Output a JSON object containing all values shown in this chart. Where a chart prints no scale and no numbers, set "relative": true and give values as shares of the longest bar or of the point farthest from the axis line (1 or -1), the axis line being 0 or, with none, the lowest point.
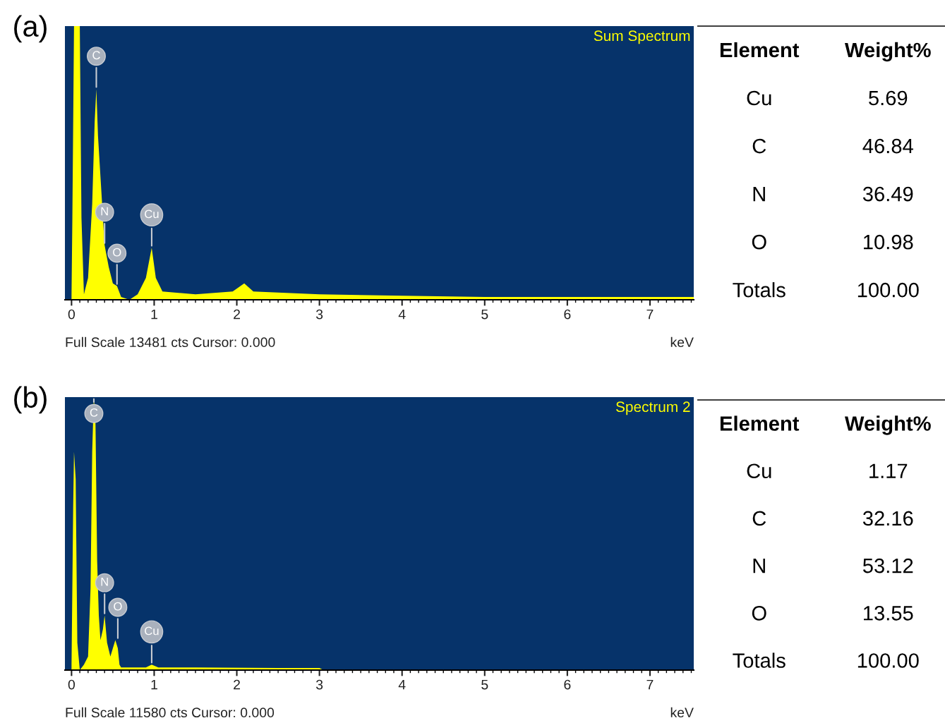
{
  "chart_data": [
    {
      "type": "area",
      "title": "Sum Spectrum",
      "xlabel": "keV",
      "relative": true,
      "xlim": [
        -0.08,
        7.53
      ],
      "xticks": [
        0,
        1,
        2,
        3,
        4,
        5,
        6,
        7
      ],
      "x": [
        0,
        0.01,
        0.03,
        0.1,
        0.12,
        0.15,
        0.2,
        0.25,
        0.28,
        0.3,
        0.32,
        0.4,
        0.45,
        0.5,
        0.55,
        0.6,
        0.7,
        0.8,
        0.9,
        0.97,
        1.02,
        1.1,
        1.5,
        1.95,
        2.09,
        2.2,
        3,
        4,
        5,
        6,
        7,
        7.53
      ],
      "series": [
        {
          "color": "#ffff00",
          "values": [
            0.02,
            0.3,
            1,
            1,
            0.3,
            0.02,
            0.08,
            0.35,
            0.65,
            0.77,
            0.6,
            0.2,
            0.12,
            0.06,
            0.05,
            0.01,
            0.0,
            0.02,
            0.08,
            0.19,
            0.08,
            0.03,
            0.02,
            0.03,
            0.06,
            0.03,
            0.02,
            0.015,
            0.01,
            0.01,
            0.01,
            0.01
          ]
        }
      ],
      "annotations": [
        "(a)",
        "Full Scale 13481 cts Cursor: 0.000",
        {
          "text": "C",
          "x": 0.3,
          "y": 0.77
        },
        {
          "text": "N",
          "x": 0.4,
          "y": 0.2
        },
        {
          "text": "O",
          "x": 0.55,
          "y": 0.05
        },
        {
          "text": "Cu",
          "x": 0.97,
          "y": 0.19
        }
      ]
    },
    {
      "type": "other",
      "annotations": [
        "Element",
        "Weight%",
        "Cu",
        "5.69",
        "C",
        "46.84",
        "N",
        "36.49",
        "O",
        "10.98",
        "Totals",
        "100.00"
      ]
    },
    {
      "type": "area",
      "title": "Spectrum 2",
      "xlabel": "keV",
      "relative": true,
      "xlim": [
        -0.08,
        7.53
      ],
      "xticks": [
        0,
        1,
        2,
        3,
        4,
        5,
        6,
        7
      ],
      "x": [
        0,
        0.02,
        0.03,
        0.05,
        0.07,
        0.1,
        0.15,
        0.2,
        0.23,
        0.25,
        0.27,
        0.29,
        0.31,
        0.33,
        0.35,
        0.38,
        0.4,
        0.43,
        0.47,
        0.5,
        0.53,
        0.56,
        0.58,
        0.6,
        0.7,
        0.9,
        0.97,
        1.05,
        1.5,
        2.5,
        3.0,
        3.05,
        4,
        5,
        6,
        7,
        7.53
      ],
      "series": [
        {
          "color": "#ffff00",
          "values": [
            0.02,
            0.6,
            0.8,
            0.7,
            0.1,
            0.0,
            0.02,
            0.05,
            0.3,
            0.8,
            1,
            0.9,
            0.4,
            0.2,
            0.11,
            0.15,
            0.2,
            0.1,
            0.05,
            0.08,
            0.11,
            0.08,
            0.02,
            0.01,
            0.01,
            0.01,
            0.02,
            0.01,
            0.01,
            0.008,
            0.008,
            0,
            0,
            0,
            0,
            0,
            0
          ]
        }
      ],
      "annotations": [
        "(b)",
        "Full Scale 11580 cts Cursor: 0.000",
        {
          "text": "C",
          "x": 0.27,
          "y": 1
        },
        {
          "text": "N",
          "x": 0.4,
          "y": 0.2
        },
        {
          "text": "O",
          "x": 0.56,
          "y": 0.11
        },
        {
          "text": "Cu",
          "x": 0.97,
          "y": 0.02
        }
      ]
    },
    {
      "type": "other",
      "annotations": [
        "Element",
        "Weight%",
        "Cu",
        "1.17",
        "C",
        "32.16",
        "N",
        "53.12",
        "O",
        "13.55",
        "Totals",
        "100.00"
      ]
    }
  ]
}
